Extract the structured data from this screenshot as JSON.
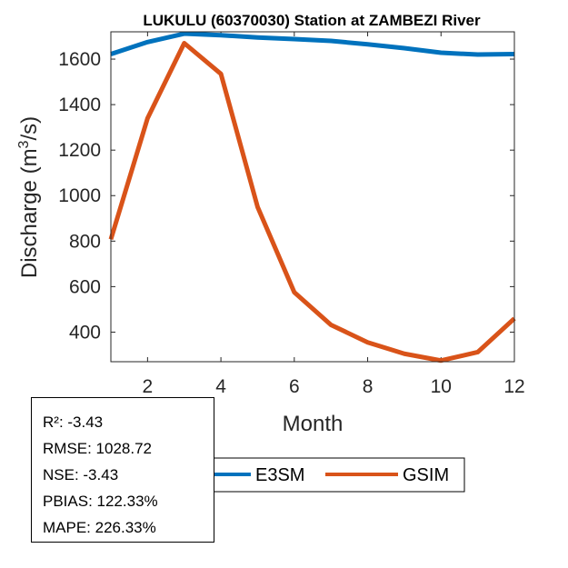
{
  "chart_data": {
    "type": "line",
    "title": "LUKULU (60370030)  Station at  ZAMBEZI  River",
    "xlabel": "Month",
    "ylabel_main": "Discharge (m",
    "ylabel_sup": "3",
    "ylabel_end": "/s)",
    "xlim": [
      1,
      12
    ],
    "ylim": [
      270,
      1720
    ],
    "xticks": [
      2,
      4,
      6,
      8,
      10,
      12
    ],
    "yticks": [
      400,
      600,
      800,
      1000,
      1200,
      1400,
      1600
    ],
    "x": [
      1,
      2,
      3,
      4,
      5,
      6,
      7,
      8,
      9,
      10,
      11,
      12
    ],
    "series": [
      {
        "name": "E3SM",
        "color": "#0072BD",
        "values": [
          1622,
          1675,
          1712,
          1705,
          1695,
          1688,
          1680,
          1665,
          1648,
          1628,
          1620,
          1622
        ]
      },
      {
        "name": "GSIM",
        "color": "#D95319",
        "values": [
          808,
          1340,
          1670,
          1535,
          950,
          575,
          432,
          355,
          305,
          275,
          312,
          460
        ]
      }
    ],
    "legend_placement": "bottom",
    "grid": false
  },
  "stats": {
    "r2": "R²: -3.43",
    "rmse": "RMSE: 1028.72",
    "nse": "NSE: -3.43",
    "pbias": "PBIAS: 122.33%",
    "mape": "MAPE: 226.33%"
  }
}
